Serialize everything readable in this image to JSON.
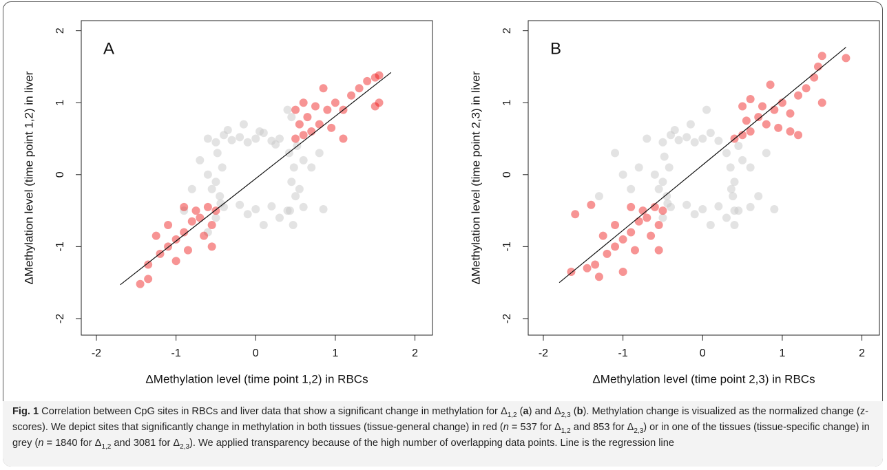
{
  "chart_data": [
    {
      "type": "scatter",
      "label": "A",
      "x_label": "ΔMethylation level (time point 1,2) in RBCs",
      "y_label": "ΔMethylation level (time point 1,2) in liver",
      "xlim": [
        -2.19,
        2.22
      ],
      "ylim": [
        -2.23,
        2.14
      ],
      "xticks": [
        -2,
        -1,
        0,
        1,
        2
      ],
      "yticks": [
        -2,
        -1,
        0,
        1,
        2
      ],
      "series": [
        {
          "color": "#c8c8c8",
          "opacity": 0.5,
          "x": [
            -0.6,
            -0.5,
            -0.4,
            -0.3,
            -0.2,
            -0.1,
            0,
            0.1,
            0.2,
            0.3,
            -0.35,
            0.05,
            0.25,
            -0.15,
            0.45,
            0.4,
            0.42,
            0.48,
            0.45,
            0.5,
            0.43,
            0.55,
            0.6,
            0.7,
            0.47,
            0.8,
            0.52,
            -0.4,
            -0.2,
            0,
            0.2,
            0.4,
            0.6,
            0.85,
            -0.1,
            0.3,
            0.1,
            -0.5,
            -0.45,
            -0.5,
            -0.42,
            -0.48,
            -0.6,
            -0.55,
            -0.7,
            -0.44,
            -0.8,
            -0.6,
            -0.9
          ],
          "values": [
            0.5,
            0.45,
            0.55,
            0.48,
            0.52,
            0.45,
            0.5,
            0.58,
            0.47,
            0.5,
            0.62,
            0.6,
            0.42,
            0.7,
            0.8,
            0.9,
            0.3,
            0.1,
            -0.1,
            -0.3,
            -0.5,
            -0.2,
            0.2,
            0.1,
            -0.7,
            0.3,
            0.4,
            -0.45,
            -0.42,
            -0.48,
            -0.44,
            -0.5,
            -0.45,
            -0.48,
            -0.55,
            -0.6,
            -0.7,
            -0.6,
            -0.3,
            -0.1,
            0.1,
            0.3,
            0,
            -0.2,
            0.2,
            -0.4,
            -0.2,
            -0.8,
            -0.5
          ]
        },
        {
          "color": "#ee1111",
          "opacity": 0.45,
          "x": [
            0.5,
            0.6,
            0.7,
            0.55,
            0.65,
            0.8,
            0.9,
            0.75,
            1.0,
            1.1,
            1.2,
            0.85,
            1.3,
            1.5,
            1.55,
            1.5,
            1.55,
            1.1,
            0.6,
            0.95,
            0.5,
            1.4,
            -0.5,
            -0.6,
            -0.7,
            -0.55,
            -0.8,
            -0.9,
            -0.65,
            -1.0,
            -1.1,
            -0.85,
            -1.2,
            -1.35,
            -1.35,
            -1.45,
            -0.55,
            -1.1,
            -0.9,
            -1.0,
            -0.75,
            -1.25
          ],
          "values": [
            0.5,
            0.55,
            0.6,
            0.7,
            0.8,
            0.7,
            0.9,
            0.95,
            1.0,
            0.9,
            1.1,
            1.2,
            1.2,
            1.35,
            1.38,
            0.95,
            1.0,
            0.5,
            1.0,
            0.65,
            0.9,
            1.3,
            -0.5,
            -0.45,
            -0.6,
            -0.7,
            -0.65,
            -0.8,
            -0.85,
            -0.9,
            -1.0,
            -1.05,
            -1.1,
            -1.25,
            -1.45,
            -1.52,
            -1.0,
            -0.7,
            -0.45,
            -1.2,
            -0.5,
            -0.85
          ]
        }
      ],
      "regression": {
        "x": [
          -1.7,
          1.7
        ],
        "values": [
          -1.53,
          1.42
        ]
      }
    },
    {
      "type": "scatter",
      "label": "B",
      "x_label": "ΔMethylation level (time point 2,3) in RBCs",
      "y_label": "ΔMethylation level (time point 2,3) in liver",
      "xlim": [
        -2.19,
        2.22
      ],
      "ylim": [
        -2.23,
        2.14
      ],
      "xticks": [
        -2,
        -1,
        0,
        1,
        2
      ],
      "yticks": [
        -2,
        -1,
        0,
        1,
        2
      ],
      "series": [
        {
          "color": "#c8c8c8",
          "opacity": 0.5,
          "x": [
            -0.7,
            -0.5,
            -0.4,
            -0.3,
            -0.2,
            -0.1,
            0,
            0.1,
            0.2,
            -0.35,
            0.05,
            -0.15,
            0.3,
            0.35,
            0.4,
            0.38,
            0.45,
            0.36,
            0.5,
            0.6,
            0.7,
            0.4,
            0.8,
            0.45,
            -0.4,
            -0.2,
            0,
            0.2,
            0.4,
            0.6,
            0.9,
            -0.1,
            0.3,
            0.1,
            -0.5,
            -0.45,
            -0.5,
            -0.42,
            -0.48,
            -0.6,
            -0.55,
            -0.8,
            -0.44,
            -0.9,
            -1.1,
            -1.0,
            -1.3
          ],
          "values": [
            0.5,
            0.45,
            0.55,
            0.48,
            0.52,
            0.45,
            0.5,
            0.58,
            0.47,
            0.62,
            0.9,
            0.7,
            0.3,
            0.1,
            -0.1,
            -0.3,
            -0.5,
            -0.2,
            0.2,
            0.1,
            -0.3,
            -0.7,
            0.3,
            0.4,
            -0.45,
            -0.42,
            -0.48,
            -0.44,
            -0.5,
            -0.45,
            -0.48,
            -0.55,
            -0.6,
            -0.7,
            -0.6,
            -0.3,
            -0.1,
            0.1,
            0.25,
            0,
            -0.2,
            0.1,
            -0.4,
            -0.2,
            0.3,
            0,
            -0.3
          ]
        },
        {
          "color": "#ee1111",
          "opacity": 0.45,
          "x": [
            0.4,
            0.5,
            0.6,
            0.55,
            0.7,
            0.8,
            0.9,
            0.75,
            1.0,
            1.1,
            1.2,
            0.85,
            1.3,
            1.45,
            1.5,
            1.8,
            1.5,
            1.1,
            0.6,
            0.95,
            0.5,
            1.4,
            1.2,
            -0.5,
            -0.6,
            -0.7,
            -0.55,
            -0.8,
            -0.9,
            -0.65,
            -1.0,
            -1.1,
            -0.85,
            -1.2,
            -1.35,
            -1.3,
            -1.45,
            -0.55,
            -1.1,
            -0.9,
            -1.0,
            -0.75,
            -1.25,
            -1.65,
            -1.6,
            -1.4
          ],
          "values": [
            0.5,
            0.55,
            0.6,
            0.75,
            0.8,
            0.7,
            0.9,
            0.95,
            1.0,
            0.85,
            1.1,
            1.25,
            1.2,
            1.5,
            1.65,
            1.62,
            1.0,
            0.6,
            1.05,
            0.65,
            0.95,
            1.35,
            0.55,
            -0.5,
            -0.45,
            -0.6,
            -0.7,
            -0.65,
            -0.8,
            -0.85,
            -0.9,
            -1.0,
            -1.05,
            -1.1,
            -1.25,
            -1.42,
            -1.3,
            -1.05,
            -0.7,
            -0.45,
            -1.35,
            -0.5,
            -0.85,
            -1.35,
            -0.55,
            -0.42
          ]
        }
      ],
      "regression": {
        "x": [
          -1.8,
          1.8
        ],
        "values": [
          -1.5,
          1.77
        ]
      }
    }
  ],
  "caption": [
    "Fig. 1",
    " Correlation between CpG sites in RBCs and liver data that show a significant change in methylation for Δ",
    "1,2",
    " (",
    "a",
    ") and Δ",
    "2,3",
    " (",
    "b",
    "). Methylation change is visualized as the normalized change (z-scores). We depict sites that significantly change in methylation in both tissues (tissue-general change) in red (",
    "n",
    " = 537 for Δ",
    "1,2",
    " and 853 for Δ",
    "2,3",
    ") or in one of the tissues (tissue-specific change) in grey (",
    "n",
    " = 1840 for Δ",
    "1,2",
    " and 3081 for Δ",
    "2,3",
    "). We applied transparency because of the high number of overlapping data points. Line is the regression line"
  ]
}
